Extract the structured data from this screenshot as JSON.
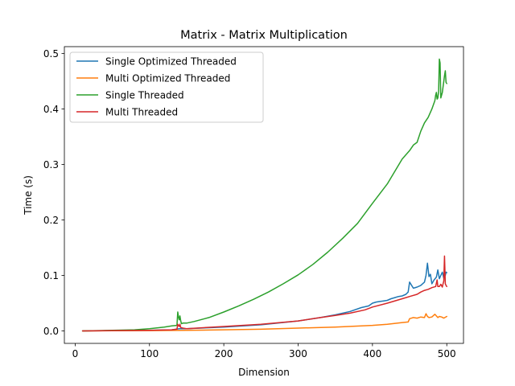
{
  "chart_data": {
    "type": "line",
    "title": "Matrix - Matrix Multiplication",
    "xlabel": "Dimension",
    "ylabel": "Time (s)",
    "xlim": [
      -14.5,
      522.5
    ],
    "ylim": [
      -0.0225,
      0.5125
    ],
    "xticks": [
      0,
      100,
      200,
      300,
      400,
      500
    ],
    "yticks": [
      0.0,
      0.1,
      0.2,
      0.3,
      0.4,
      0.5
    ],
    "xtick_labels": [
      "0",
      "100",
      "200",
      "300",
      "400",
      "500"
    ],
    "ytick_labels": [
      "0.0",
      "0.1",
      "0.2",
      "0.3",
      "0.4",
      "0.5"
    ],
    "grid": false,
    "legend_position": "upper-left",
    "series": [
      {
        "name": "Single Optimized Threaded",
        "color": "#1f77b4",
        "x": [
          10,
          50,
          100,
          130,
          140,
          150,
          200,
          250,
          300,
          330,
          350,
          370,
          385,
          395,
          400,
          405,
          410,
          415,
          420,
          425,
          430,
          435,
          440,
          445,
          448,
          450,
          455,
          460,
          465,
          470,
          472,
          474,
          476,
          478,
          480,
          483,
          486,
          488,
          490,
          492,
          494,
          496,
          497,
          498,
          499,
          500
        ],
        "values": [
          0.0,
          0.0005,
          0.001,
          0.002,
          0.004,
          0.004,
          0.007,
          0.011,
          0.018,
          0.024,
          0.029,
          0.035,
          0.042,
          0.045,
          0.05,
          0.052,
          0.053,
          0.054,
          0.055,
          0.058,
          0.06,
          0.062,
          0.063,
          0.066,
          0.07,
          0.088,
          0.077,
          0.079,
          0.082,
          0.088,
          0.1,
          0.122,
          0.098,
          0.102,
          0.085,
          0.092,
          0.097,
          0.11,
          0.094,
          0.1,
          0.106,
          0.095,
          0.104,
          0.1,
          0.106,
          0.105
        ]
      },
      {
        "name": "Multi Optimized Threaded",
        "color": "#ff7f0e",
        "x": [
          10,
          50,
          100,
          150,
          200,
          250,
          300,
          350,
          400,
          420,
          440,
          448,
          450,
          455,
          460,
          465,
          470,
          472,
          474,
          476,
          480,
          484,
          488,
          490,
          493,
          496,
          500
        ],
        "values": [
          0.0,
          0.0002,
          0.0005,
          0.001,
          0.002,
          0.003,
          0.005,
          0.007,
          0.01,
          0.012,
          0.015,
          0.016,
          0.022,
          0.024,
          0.023,
          0.025,
          0.024,
          0.031,
          0.026,
          0.024,
          0.025,
          0.03,
          0.024,
          0.026,
          0.025,
          0.023,
          0.026
        ]
      },
      {
        "name": "Single Threaded",
        "color": "#2ca02c",
        "x": [
          10,
          50,
          80,
          100,
          120,
          130,
          137,
          138,
          139,
          140,
          141,
          142,
          143,
          145,
          150,
          160,
          180,
          200,
          220,
          240,
          260,
          280,
          300,
          320,
          340,
          360,
          380,
          400,
          420,
          440,
          450,
          455,
          460,
          465,
          470,
          475,
          480,
          484,
          485,
          486,
          487,
          488,
          489,
          490,
          491,
          492,
          494,
          495,
          496,
          497,
          498,
          499,
          500
        ],
        "values": [
          0.0,
          0.001,
          0.002,
          0.004,
          0.007,
          0.009,
          0.01,
          0.034,
          0.025,
          0.02,
          0.027,
          0.018,
          0.013,
          0.014,
          0.014,
          0.017,
          0.024,
          0.034,
          0.045,
          0.057,
          0.07,
          0.085,
          0.101,
          0.12,
          0.142,
          0.167,
          0.194,
          0.23,
          0.265,
          0.31,
          0.325,
          0.335,
          0.34,
          0.36,
          0.375,
          0.385,
          0.4,
          0.415,
          0.425,
          0.43,
          0.418,
          0.42,
          0.432,
          0.49,
          0.483,
          0.42,
          0.43,
          0.44,
          0.45,
          0.46,
          0.469,
          0.448,
          0.446
        ]
      },
      {
        "name": "Multi Threaded",
        "color": "#d62728",
        "x": [
          10,
          50,
          100,
          130,
          137,
          138,
          139,
          140,
          141,
          142,
          145,
          150,
          200,
          250,
          300,
          330,
          350,
          370,
          390,
          400,
          420,
          440,
          450,
          460,
          465,
          470,
          475,
          480,
          485,
          487,
          488,
          490,
          492,
          494,
          495,
          496,
          497,
          498,
          499,
          500
        ],
        "values": [
          0.0,
          0.0005,
          0.001,
          0.002,
          0.003,
          0.012,
          0.01,
          0.008,
          0.012,
          0.006,
          0.005,
          0.004,
          0.008,
          0.012,
          0.018,
          0.024,
          0.028,
          0.032,
          0.038,
          0.043,
          0.05,
          0.058,
          0.062,
          0.066,
          0.07,
          0.073,
          0.075,
          0.078,
          0.08,
          0.092,
          0.08,
          0.08,
          0.084,
          0.079,
          0.085,
          0.09,
          0.135,
          0.085,
          0.082,
          0.08
        ]
      }
    ]
  }
}
